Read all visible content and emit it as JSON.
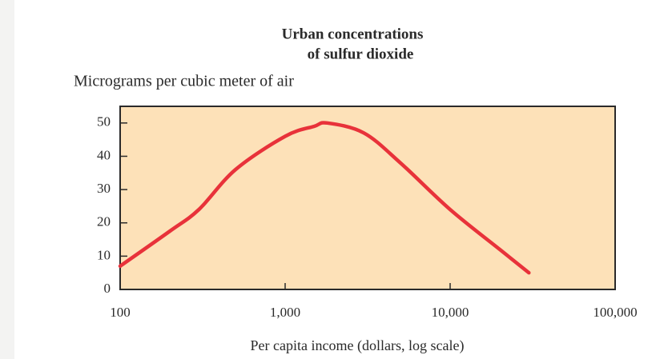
{
  "chart_data": {
    "type": "line",
    "title_lines": [
      "Urban concentrations",
      "of sulfur dioxide"
    ],
    "y_label": "Micrograms per cubic meter of air",
    "x_label": "Per capita income (dollars, log scale)",
    "x": [
      100,
      200,
      300,
      500,
      1000,
      1500,
      1800,
      3000,
      5000,
      10000,
      20000,
      30000
    ],
    "values": [
      7,
      17.5,
      24,
      36,
      46,
      49,
      50,
      47,
      38,
      24,
      12,
      5
    ],
    "color": "#e8323a",
    "plot_color": "#fde1b8",
    "xlog": true,
    "xlim": [
      100,
      100000
    ],
    "xticks": [
      100,
      {
        "value": 1000,
        "label": "1,000"
      },
      {
        "value": 10000,
        "label": "10,000"
      },
      {
        "value": 100000,
        "label": "100,000"
      }
    ],
    "ylim": [
      0,
      55
    ],
    "yticks": [
      0,
      10,
      20,
      30,
      40,
      50
    ]
  }
}
